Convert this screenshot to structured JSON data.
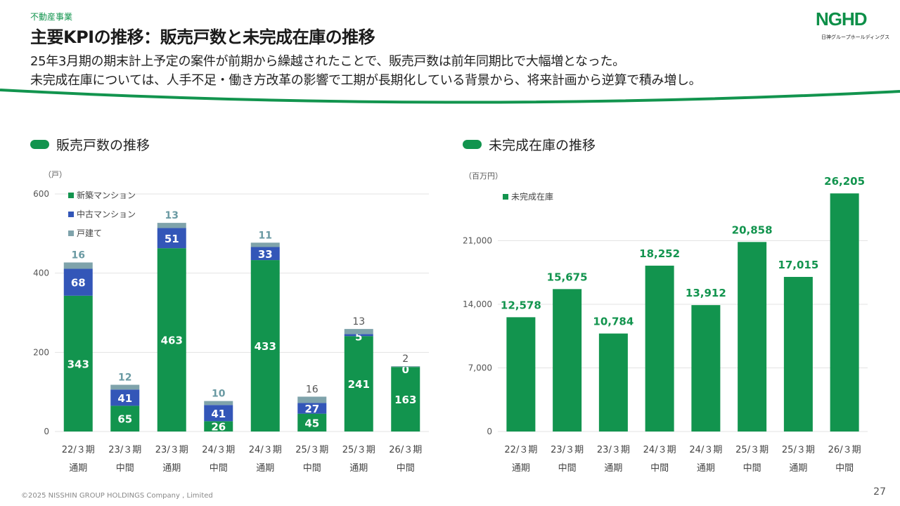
{
  "header": {
    "category": "不動産事業",
    "title": "主要KPIの推移：販売戸数と未完成在庫の推移",
    "subtitle_line1": "25年3月期の期末計上予定の案件が前期から繰越されたことで、販売戸数は前年同期比で大幅増となった。",
    "subtitle_line2": "未完成在庫については、人手不足・働き方改革の影響で工期が長期化している背景から、将来計画から逆算で積み増し。"
  },
  "logo": {
    "mark": "NGHD",
    "text": "日神グループホールディングス"
  },
  "colors": {
    "green": "#12944e",
    "blue": "#3356b8",
    "gray": "#7fa3ab",
    "grid": "#e3e3e3"
  },
  "chart_data": [
    {
      "type": "bar",
      "stacked": true,
      "title": "販売戸数の推移",
      "unit": "（戸）",
      "categories": [
        [
          "22/３期",
          "通期"
        ],
        [
          "23/３期",
          "中間"
        ],
        [
          "23/３期",
          "通期"
        ],
        [
          "24/３期",
          "中間"
        ],
        [
          "24/３期",
          "通期"
        ],
        [
          "25/３期",
          "中間"
        ],
        [
          "25/３期",
          "通期"
        ],
        [
          "26/３期",
          "中間"
        ]
      ],
      "ylim": [
        0,
        600
      ],
      "yticks": [
        0,
        200,
        400,
        600
      ],
      "legend_position": "top-left",
      "series": [
        {
          "name": "新築マンション",
          "color": "green",
          "values": [
            343,
            65,
            463,
            26,
            433,
            45,
            241,
            163
          ]
        },
        {
          "name": "中古マンション",
          "color": "blue",
          "values": [
            68,
            41,
            51,
            41,
            33,
            27,
            5,
            0
          ]
        },
        {
          "name": "戸建て",
          "color": "gray",
          "values": [
            16,
            12,
            13,
            10,
            11,
            16,
            13,
            2
          ]
        }
      ],
      "top_label_style": [
        "teal",
        "teal",
        "teal",
        "teal",
        "teal",
        "dark",
        "dark",
        "dark"
      ]
    },
    {
      "type": "bar",
      "title": "未完成在庫の推移",
      "unit": "（百万円）",
      "categories": [
        [
          "22/３期",
          "通期"
        ],
        [
          "23/３期",
          "中間"
        ],
        [
          "23/３期",
          "通期"
        ],
        [
          "24/３期",
          "中間"
        ],
        [
          "24/３期",
          "通期"
        ],
        [
          "25/３期",
          "中間"
        ],
        [
          "25/３期",
          "通期"
        ],
        [
          "26/３期",
          "中間"
        ]
      ],
      "ylim": [
        0,
        28000
      ],
      "yticks": [
        0,
        7000,
        14000,
        21000
      ],
      "legend_position": "top-left",
      "series": [
        {
          "name": "未完成在庫",
          "color": "green",
          "values": [
            12578,
            15675,
            10784,
            18252,
            13912,
            20858,
            17015,
            26205
          ]
        }
      ]
    }
  ],
  "footer": "©2025 NISSHIN GROUP HOLDINGS Company , Limited",
  "page_number": "27"
}
